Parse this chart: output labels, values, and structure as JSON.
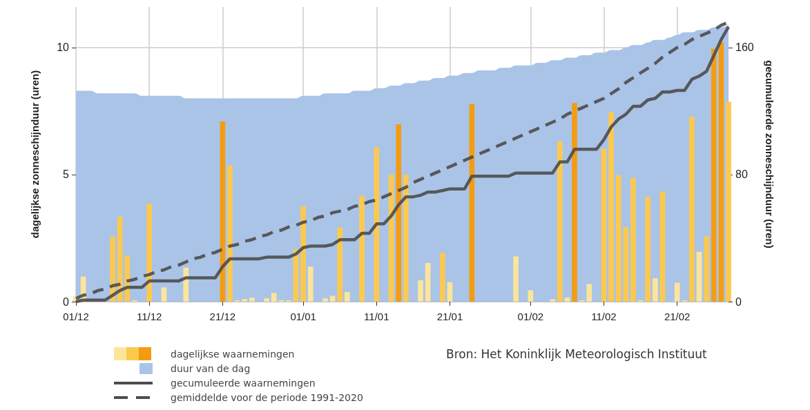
{
  "chart_data": {
    "type": "bar",
    "categories": [
      "01/12",
      null,
      null,
      null,
      null,
      null,
      null,
      null,
      null,
      null,
      "11/12",
      null,
      null,
      null,
      null,
      null,
      null,
      null,
      null,
      null,
      "21/12",
      null,
      null,
      null,
      null,
      null,
      null,
      null,
      null,
      null,
      null,
      "01/01",
      null,
      null,
      null,
      null,
      null,
      null,
      null,
      null,
      null,
      "11/01",
      null,
      null,
      null,
      null,
      null,
      null,
      null,
      null,
      null,
      "21/01",
      null,
      null,
      null,
      null,
      null,
      null,
      null,
      null,
      null,
      null,
      "01/02",
      null,
      null,
      null,
      null,
      null,
      null,
      null,
      null,
      null,
      "11/02",
      null,
      null,
      null,
      null,
      null,
      null,
      null,
      null,
      null,
      "21/02",
      null,
      null,
      null,
      null,
      null,
      null,
      null
    ],
    "series": [
      {
        "name": "duur van de dag",
        "type": "area",
        "color": "#aac4e8",
        "values": [
          8.3,
          8.3,
          8.3,
          8.2,
          8.2,
          8.2,
          8.2,
          8.2,
          8.2,
          8.1,
          8.1,
          8.1,
          8.1,
          8.1,
          8.1,
          8.0,
          8.0,
          8.0,
          8.0,
          8.0,
          8.0,
          8.0,
          8.0,
          8.0,
          8.0,
          8.0,
          8.0,
          8.0,
          8.0,
          8.0,
          8.0,
          8.1,
          8.1,
          8.1,
          8.2,
          8.2,
          8.2,
          8.2,
          8.3,
          8.3,
          8.3,
          8.4,
          8.4,
          8.5,
          8.5,
          8.6,
          8.6,
          8.7,
          8.7,
          8.8,
          8.8,
          8.9,
          8.9,
          9.0,
          9.0,
          9.1,
          9.1,
          9.1,
          9.2,
          9.2,
          9.3,
          9.3,
          9.3,
          9.4,
          9.4,
          9.5,
          9.5,
          9.6,
          9.6,
          9.7,
          9.7,
          9.8,
          9.8,
          9.9,
          9.9,
          10.0,
          10.1,
          10.1,
          10.2,
          10.3,
          10.3,
          10.4,
          10.5,
          10.6,
          10.6,
          10.7,
          10.7,
          10.8,
          10.8,
          10.9
        ]
      },
      {
        "name": "dagelijkse waarnemingen",
        "values": [
          0.22,
          0.99,
          0,
          0,
          0,
          2.56,
          3.34,
          1.82,
          0.05,
          0,
          3.85,
          0,
          0.56,
          0,
          0,
          1.34,
          0,
          0,
          0,
          0,
          7.09,
          5.36,
          0.05,
          0.1,
          0.16,
          0,
          0.13,
          0.34,
          0.05,
          0.05,
          2.06,
          3.75,
          1.38,
          0,
          0.13,
          0.23,
          2.92,
          0.38,
          0,
          4.18,
          0,
          6.08,
          0,
          5.0,
          6.98,
          5.0,
          0,
          0.84,
          1.52,
          0,
          1.92,
          0.77,
          0,
          0,
          7.77,
          0,
          0,
          0,
          0,
          0,
          1.78,
          0,
          0.45,
          0,
          0,
          0.09,
          6.31,
          0.16,
          7.82,
          0.05,
          0.7,
          0,
          6.02,
          7.46,
          4.98,
          2.93,
          4.87,
          0.05,
          4.12,
          0.92,
          4.33,
          0,
          0.74,
          0.05,
          7.28,
          1.96,
          2.57,
          9.95,
          10.2,
          7.87
        ],
        "colors": [
          "#fce59b",
          "#fce59b",
          "#fce59b",
          "#fce59b",
          "#fce59b",
          "#fcc94f",
          "#fcc94f",
          "#fcc94f",
          "#fce59b",
          "#fce59b",
          "#fcc94f",
          "#fce59b",
          "#fce59b",
          "#fce59b",
          "#fce59b",
          "#fce59b",
          "#fce59b",
          "#fce59b",
          "#fce59b",
          "#fce59b",
          "#f39c12",
          "#fcc94f",
          "#fce59b",
          "#fce59b",
          "#fce59b",
          "#fce59b",
          "#fce59b",
          "#fce59b",
          "#fce59b",
          "#fce59b",
          "#fcc94f",
          "#fcc94f",
          "#fce59b",
          "#fce59b",
          "#fce59b",
          "#fce59b",
          "#fcc94f",
          "#fce59b",
          "#fce59b",
          "#fcc94f",
          "#fce59b",
          "#fcc94f",
          "#fce59b",
          "#fcc94f",
          "#f39c12",
          "#fcc94f",
          "#fce59b",
          "#fce59b",
          "#fce59b",
          "#fce59b",
          "#fcc94f",
          "#fce59b",
          "#fce59b",
          "#fce59b",
          "#f39c12",
          "#fce59b",
          "#fce59b",
          "#fce59b",
          "#fce59b",
          "#fce59b",
          "#fce59b",
          "#fce59b",
          "#fce59b",
          "#fce59b",
          "#fce59b",
          "#fce59b",
          "#fcc94f",
          "#fce59b",
          "#f39c12",
          "#fce59b",
          "#fce59b",
          "#fce59b",
          "#fcc94f",
          "#fcc94f",
          "#fcc94f",
          "#fcc94f",
          "#fcc94f",
          "#fce59b",
          "#fcc94f",
          "#fce59b",
          "#fcc94f",
          "#fce59b",
          "#fce59b",
          "#fce59b",
          "#fcc94f",
          "#fce59b",
          "#fcc94f",
          "#f39c12",
          "#f39c12",
          "#fcc94f"
        ]
      },
      {
        "name": "gecumuleerde waarnemingen",
        "type": "line",
        "axis": "y2",
        "color": "#4d4d4d",
        "line_style": "solid",
        "values": [
          0,
          1,
          1,
          1,
          1,
          4,
          7,
          9,
          9,
          9,
          13,
          13,
          13,
          13,
          13,
          15,
          15,
          15,
          15,
          15,
          22,
          27,
          27,
          27,
          27,
          27,
          28,
          28,
          28,
          28,
          30,
          34,
          35,
          35,
          35,
          36,
          39,
          39,
          39,
          43,
          43,
          49,
          49,
          54,
          61,
          66,
          66,
          67,
          69,
          69,
          70,
          71,
          71,
          71,
          79,
          79,
          79,
          79,
          79,
          79,
          81,
          81,
          81,
          81,
          81,
          81,
          88,
          88,
          96,
          96,
          96,
          96,
          102,
          110,
          115,
          118,
          123,
          123,
          127,
          128,
          132,
          132,
          133,
          133,
          140,
          142,
          145,
          155,
          165,
          173
        ]
      },
      {
        "name": "gemiddelde voor de periode 1991-2020",
        "type": "line",
        "axis": "y2",
        "color": "#4d4d4d",
        "line_style": "dashed",
        "values": [
          2,
          4,
          5,
          7,
          8,
          10,
          11,
          13,
          14,
          16,
          17,
          19,
          20,
          22,
          23,
          25,
          27,
          28,
          30,
          31,
          33,
          35,
          36,
          38,
          39,
          41,
          42,
          44,
          45,
          47,
          48,
          50,
          51,
          53,
          54,
          56,
          57,
          58,
          60,
          61,
          63,
          64,
          66,
          68,
          70,
          72,
          75,
          77,
          79,
          81,
          83,
          85,
          87,
          89,
          91,
          93,
          95,
          97,
          99,
          101,
          103,
          105,
          107,
          109,
          111,
          113,
          115,
          118,
          120,
          122,
          124,
          126,
          128,
          131,
          134,
          138,
          141,
          144,
          147,
          150,
          154,
          157,
          160,
          162,
          165,
          167,
          169,
          171,
          174,
          176
        ]
      }
    ],
    "ylabel": "dagelijkse zonneschijnduur (uren)",
    "y2label": "gecumuleerde zonneschijnduur (uren)",
    "ylim": [
      0,
      11.6
    ],
    "yticks": [
      0,
      5,
      10
    ],
    "y2lim": [
      0,
      185.6
    ],
    "y2ticks": [
      0,
      80,
      160
    ],
    "grid": true,
    "legend": "bottom left",
    "marker": "none",
    "annotations": [
      "Bron: Het Koninklijk Meteorologisch Instituut"
    ]
  }
}
